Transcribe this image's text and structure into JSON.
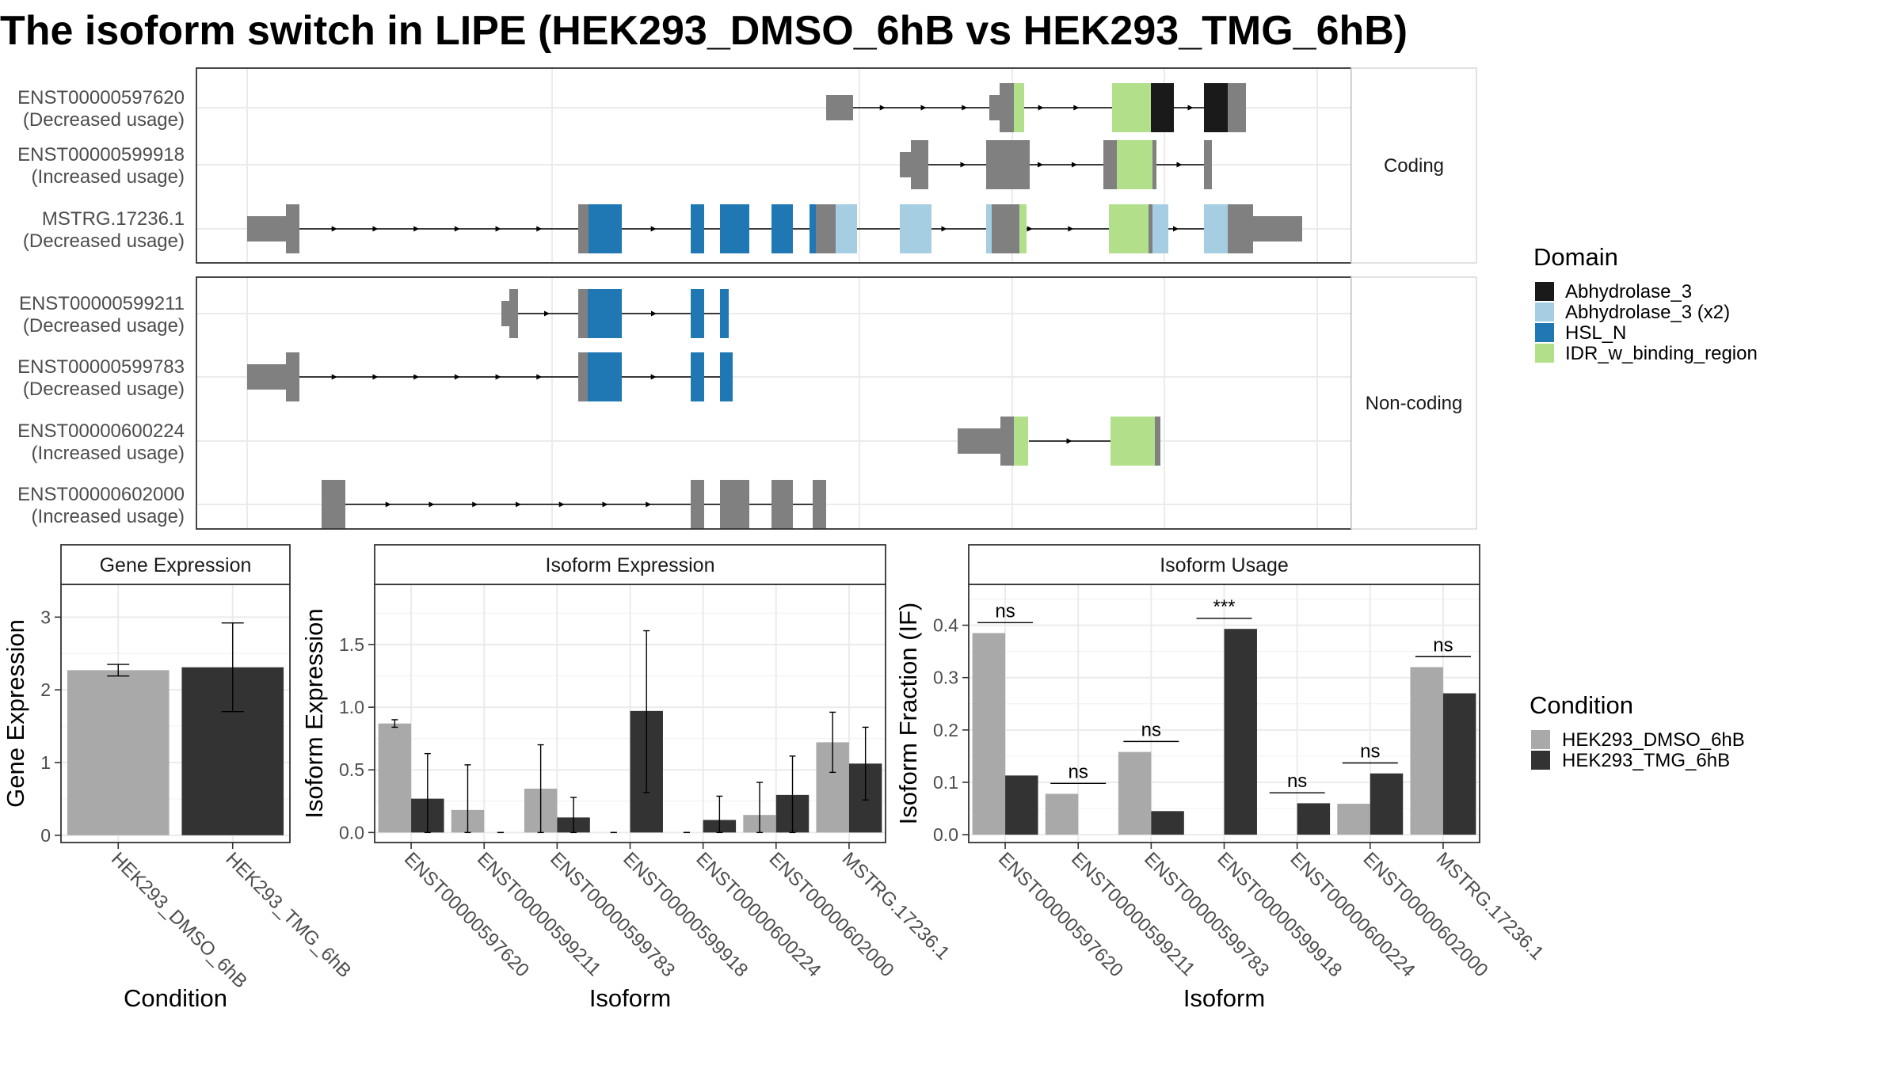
{
  "title": "The isoform switch in LIPE (HEK293_DMSO_6hB vs HEK293_TMG_6hB)",
  "colors": {
    "intron": "#000000",
    "exon": "#808080",
    "dmso": "#a9a9a9",
    "tmg": "#333333",
    "panel_border": "#333333",
    "strip_bg": "#ffffff",
    "grid": "#ebebeb"
  },
  "structure": {
    "coding_label": "Coding",
    "noncoding_label": "Non-coding",
    "legend": {
      "title": "Domain",
      "items": [
        {
          "label": "Abhydrolase_3",
          "color": "#1a1a1a"
        },
        {
          "label": "Abhydrolase_3 (x2)",
          "color": "#a6cee3"
        },
        {
          "label": "HSL_N",
          "color": "#1f78b4"
        },
        {
          "label": "IDR_w_binding_region",
          "color": "#b2df8a"
        }
      ]
    },
    "coding": [
      {
        "id": "ENST00000597620",
        "usage": "(Decreased usage)",
        "introns": [
          [
            1063,
            1270
          ],
          [
            1270,
            1404
          ],
          [
            1404,
            1462
          ],
          [
            1462,
            1545
          ]
        ],
        "exons": [
          [
            1043,
            1077,
            "exon",
            "U"
          ],
          [
            1249,
            1262,
            "exon",
            "U"
          ],
          [
            1262,
            1280,
            "exon",
            "C"
          ],
          [
            1280,
            1293,
            "IDR_w_binding_region",
            "C"
          ],
          [
            1404,
            1453,
            "IDR_w_binding_region",
            "C"
          ],
          [
            1453,
            1482,
            "Abhydrolase_3",
            "C"
          ],
          [
            1520,
            1550,
            "Abhydrolase_3",
            "C"
          ],
          [
            1550,
            1573,
            "exon",
            "C"
          ]
        ]
      },
      {
        "id": "ENST00000599918",
        "usage": "(Increased usage)",
        "introns": [
          [
            1162,
            1271
          ],
          [
            1271,
            1400
          ],
          [
            1400,
            1451
          ],
          [
            1451,
            1528
          ]
        ],
        "exons": [
          [
            1136,
            1150,
            "exon",
            "U"
          ],
          [
            1150,
            1172,
            "exon",
            "C"
          ],
          [
            1245,
            1300,
            "exon",
            "C"
          ],
          [
            1393,
            1410,
            "exon",
            "C"
          ],
          [
            1410,
            1455,
            "IDR_w_binding_region",
            "C"
          ],
          [
            1455,
            1460,
            "exon",
            "C"
          ],
          [
            1520,
            1530,
            "exon",
            "C"
          ]
        ]
      },
      {
        "id": "MSTRG.17236.1",
        "usage": "(Decreased usage)",
        "introns": [
          [
            371,
            733
          ],
          [
            733,
            872
          ],
          [
            872,
            911
          ],
          [
            911,
            976
          ],
          [
            976,
            1026
          ],
          [
            1026,
            1136
          ],
          [
            1136,
            1249
          ],
          [
            1249,
            1404
          ],
          [
            1404,
            1450
          ],
          [
            1450,
            1520
          ]
        ],
        "exons": [
          [
            312,
            361,
            "exon",
            "U"
          ],
          [
            361,
            378,
            "exon",
            "C"
          ],
          [
            730,
            743,
            "exon",
            "C"
          ],
          [
            743,
            785,
            "HSL_N",
            "C"
          ],
          [
            872,
            889,
            "HSL_N",
            "C"
          ],
          [
            909,
            946,
            "HSL_N",
            "C"
          ],
          [
            974,
            1001,
            "HSL_N",
            "C"
          ],
          [
            1022,
            1030,
            "HSL_N",
            "C"
          ],
          [
            1030,
            1055,
            "exon",
            "C"
          ],
          [
            1055,
            1082,
            "Abhydrolase_3 (x2)",
            "C"
          ],
          [
            1136,
            1176,
            "Abhydrolase_3 (x2)",
            "C"
          ],
          [
            1245,
            1252,
            "Abhydrolase_3 (x2)",
            "C"
          ],
          [
            1252,
            1287,
            "exon",
            "C"
          ],
          [
            1287,
            1296,
            "IDR_w_binding_region",
            "C"
          ],
          [
            1400,
            1450,
            "IDR_w_binding_region",
            "C"
          ],
          [
            1450,
            1455,
            "exon",
            "C"
          ],
          [
            1455,
            1475,
            "Abhydrolase_3 (x2)",
            "C"
          ],
          [
            1520,
            1550,
            "Abhydrolase_3 (x2)",
            "C"
          ],
          [
            1550,
            1582,
            "exon",
            "C"
          ],
          [
            1582,
            1644,
            "exon",
            "U"
          ]
        ]
      }
    ],
    "noncoding": [
      {
        "id": "ENST00000599211",
        "usage": "(Decreased usage)",
        "introns": [
          [
            648,
            734
          ],
          [
            734,
            872
          ],
          [
            872,
            911
          ]
        ],
        "exons": [
          [
            633,
            643,
            "exon",
            "U"
          ],
          [
            643,
            654,
            "exon",
            "C"
          ],
          [
            730,
            742,
            "exon",
            "C"
          ],
          [
            742,
            785,
            "HSL_N",
            "C"
          ],
          [
            872,
            889,
            "HSL_N",
            "C"
          ],
          [
            909,
            920,
            "HSL_N",
            "C"
          ]
        ]
      },
      {
        "id": "ENST00000599783",
        "usage": "(Decreased usage)",
        "introns": [
          [
            371,
            733
          ],
          [
            733,
            872
          ],
          [
            872,
            911
          ]
        ],
        "exons": [
          [
            312,
            361,
            "exon",
            "U"
          ],
          [
            361,
            378,
            "exon",
            "C"
          ],
          [
            730,
            742,
            "exon",
            "C"
          ],
          [
            742,
            785,
            "HSL_N",
            "C"
          ],
          [
            872,
            889,
            "HSL_N",
            "C"
          ],
          [
            909,
            925,
            "HSL_N",
            "C"
          ]
        ]
      },
      {
        "id": "ENST00000600224",
        "usage": "(Increased usage)",
        "introns": [
          [
            1299,
            1402
          ]
        ],
        "exons": [
          [
            1209,
            1263,
            "exon",
            "U"
          ],
          [
            1263,
            1280,
            "exon",
            "C"
          ],
          [
            1280,
            1298,
            "IDR_w_binding_region",
            "C"
          ],
          [
            1402,
            1458,
            "IDR_w_binding_region",
            "C"
          ],
          [
            1458,
            1465,
            "exon",
            "C"
          ]
        ]
      },
      {
        "id": "ENST00000602000",
        "usage": "(Increased usage)",
        "introns": [
          [
            436,
            874
          ],
          [
            874,
            909
          ],
          [
            909,
            976
          ],
          [
            976,
            1026
          ]
        ],
        "exons": [
          [
            406,
            436,
            "exon",
            "C"
          ],
          [
            872,
            889,
            "exon",
            "C"
          ],
          [
            909,
            946,
            "exon",
            "C"
          ],
          [
            974,
            1001,
            "exon",
            "C"
          ],
          [
            1026,
            1043,
            "exon",
            "C"
          ]
        ]
      }
    ]
  },
  "chart_data": [
    {
      "type": "bar",
      "title": "Gene Expression",
      "xlabel": "Condition",
      "ylabel": "Gene Expression",
      "ylim": [
        -0.1,
        3.45
      ],
      "yticks": [
        "0",
        "1",
        "2",
        "3"
      ],
      "categories": [
        "HEK293_DMSO_6hB",
        "HEK293_TMG_6hB"
      ],
      "values": [
        2.27,
        2.31
      ],
      "error": [
        [
          2.19,
          2.35
        ],
        [
          1.7,
          2.92
        ]
      ]
    },
    {
      "type": "bar",
      "title": "Isoform Expression",
      "xlabel": "Isoform",
      "ylabel": "Isoform Expression",
      "ylim": [
        -0.08,
        1.98
      ],
      "yticks": [
        "0.0",
        "0.5",
        "1.0",
        "1.5"
      ],
      "categories": [
        "ENST00000597620",
        "ENST00000599211",
        "ENST00000599783",
        "ENST00000599918",
        "ENST00000600224",
        "ENST00000602000",
        "MSTRG.17236.1"
      ],
      "series": [
        {
          "name": "HEK293_DMSO_6hB",
          "values": [
            0.87,
            0.18,
            0.35,
            0.0,
            0.0,
            0.14,
            0.72
          ],
          "error": [
            [
              0.84,
              0.9
            ],
            [
              0.0,
              0.54
            ],
            [
              0.0,
              0.7
            ],
            [
              0.0,
              0.0
            ],
            [
              0.0,
              0.0
            ],
            [
              0.0,
              0.4
            ],
            [
              0.48,
              0.96
            ]
          ]
        },
        {
          "name": "HEK293_TMG_6hB",
          "values": [
            0.27,
            0.0,
            0.12,
            0.97,
            0.1,
            0.3,
            0.55
          ],
          "error": [
            [
              0.0,
              0.63
            ],
            [
              0.0,
              0.0
            ],
            [
              0.0,
              0.28
            ],
            [
              0.32,
              1.61
            ],
            [
              0.0,
              0.29
            ],
            [
              0.0,
              0.61
            ],
            [
              0.26,
              0.84
            ]
          ]
        }
      ]
    },
    {
      "type": "bar",
      "title": "Isoform Usage",
      "xlabel": "Isoform",
      "ylabel": "Isoform Fraction (IF)",
      "ylim": [
        -0.015,
        0.478
      ],
      "yticks": [
        "0.0",
        "0.1",
        "0.2",
        "0.3",
        "0.4"
      ],
      "categories": [
        "ENST00000597620",
        "ENST00000599211",
        "ENST00000599783",
        "ENST00000599918",
        "ENST00000600224",
        "ENST00000602000",
        "MSTRG.17236.1"
      ],
      "series": [
        {
          "name": "HEK293_DMSO_6hB",
          "values": [
            0.385,
            0.078,
            0.158,
            0.0,
            0.0,
            0.059,
            0.32
          ]
        },
        {
          "name": "HEK293_TMG_6hB",
          "values": [
            0.113,
            0.0,
            0.045,
            0.393,
            0.06,
            0.117,
            0.27
          ]
        }
      ],
      "significance": [
        "ns",
        "ns",
        "ns",
        "***",
        "ns",
        "ns",
        "ns"
      ],
      "sig_y": [
        0.405,
        0.098,
        0.178,
        0.413,
        0.08,
        0.137,
        0.34
      ]
    }
  ],
  "legend_condition": {
    "title": "Condition",
    "items": [
      {
        "label": "HEK293_DMSO_6hB",
        "color": "#a9a9a9"
      },
      {
        "label": "HEK293_TMG_6hB",
        "color": "#333333"
      }
    ]
  }
}
